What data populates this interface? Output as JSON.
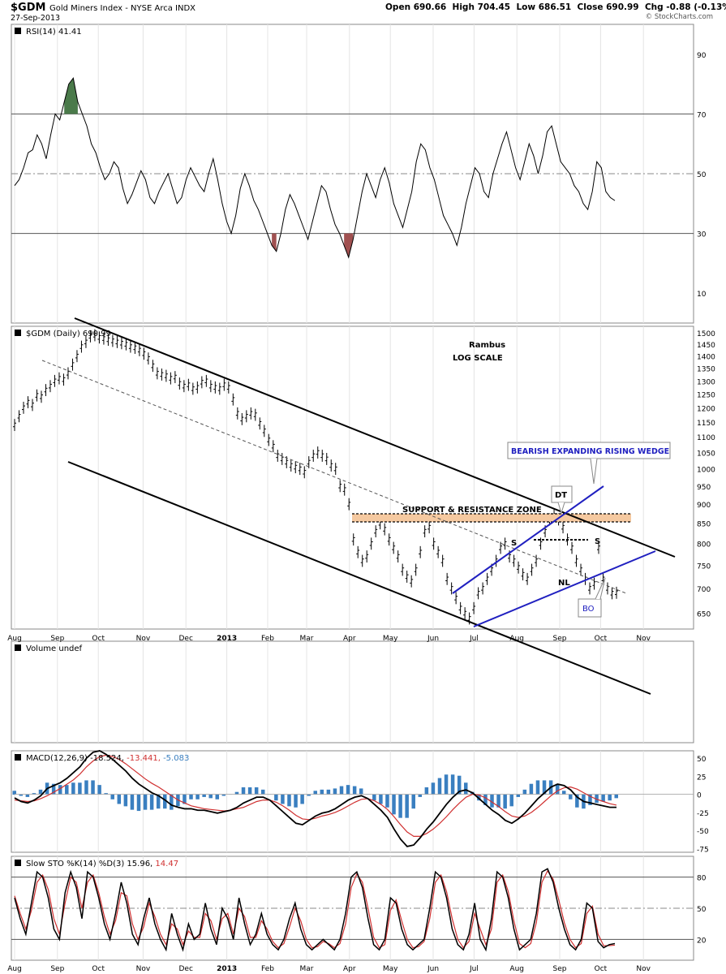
{
  "header": {
    "symbol": "$GDM",
    "description": "Gold Miners Index - NYSE Arca INDX",
    "date": "27-Sep-2013",
    "open_label": "Open",
    "open": "690.66",
    "high_label": "High",
    "high": "704.45",
    "low_label": "Low",
    "low": "686.51",
    "close_label": "Close",
    "close": "690.99",
    "chg_label": "Chg",
    "chg": "-0.88 (-0.13%)",
    "copyright": "© StockCharts.com"
  },
  "colors": {
    "price": "#000000",
    "trend": "#000000",
    "wedge": "#2020c0",
    "zone": "#f5c9a0",
    "rsi_over": "#4a7a4a",
    "rsi_under": "#a05050",
    "macd_signal": "#d03030",
    "macd_hist": "#3a7fc0",
    "sto_d": "#d03030"
  },
  "months": [
    "Aug",
    "Sep",
    "Oct",
    "Nov",
    "Dec",
    "2013",
    "Feb",
    "Mar",
    "Apr",
    "May",
    "Jun",
    "Jul",
    "Aug",
    "Sep",
    "Oct",
    "Nov"
  ],
  "chart_data": [
    {
      "type": "line",
      "panel": "rsi",
      "title": "RSI(14) 41.41",
      "yticks": [
        10,
        30,
        50,
        70,
        90
      ],
      "ylim": [
        0,
        100
      ],
      "reference_lines": [
        30,
        50,
        70
      ],
      "series": [
        {
          "values": [
            46,
            48,
            52,
            57,
            58,
            63,
            60,
            55,
            63,
            70,
            68,
            74,
            80,
            82,
            74,
            70,
            66,
            60,
            57,
            52,
            48,
            50,
            54,
            52,
            45,
            40,
            43,
            47,
            51,
            48,
            42,
            40,
            44,
            47,
            50,
            45,
            40,
            42,
            48,
            52,
            49,
            46,
            44,
            50,
            55,
            48,
            40,
            34,
            30,
            36,
            45,
            50,
            46,
            41,
            38,
            34,
            30,
            26,
            24,
            30,
            38,
            43,
            40,
            36,
            32,
            28,
            34,
            40,
            46,
            44,
            38,
            33,
            30,
            26,
            22,
            28,
            36,
            44,
            50,
            46,
            42,
            48,
            52,
            47,
            40,
            36,
            32,
            38,
            44,
            54,
            60,
            58,
            52,
            48,
            42,
            36,
            33,
            30,
            26,
            32,
            40,
            46,
            52,
            50,
            44,
            42,
            50,
            55,
            60,
            64,
            58,
            52,
            48,
            54,
            60,
            56,
            50,
            56,
            64,
            66,
            60,
            54,
            52,
            50,
            46,
            44,
            40,
            38,
            44,
            54,
            52,
            44,
            42,
            41
          ]
        }
      ]
    },
    {
      "type": "line",
      "panel": "price",
      "title": "$GDM (Daily) 690.99",
      "scale": "log",
      "yticks": [
        650,
        700,
        750,
        800,
        850,
        900,
        950,
        1000,
        1050,
        1100,
        1150,
        1200,
        1250,
        1300,
        1350,
        1400,
        1450,
        1500
      ],
      "annotations": [
        "Rambus",
        "LOG SCALE",
        "BEARISH EXPANDING RISING WEDGE",
        "SUPPORT & RESISTANCE ZONE",
        "DT",
        "S",
        "S",
        "NL",
        "BO"
      ],
      "series": [
        {
          "values": [
            1140,
            1170,
            1200,
            1220,
            1210,
            1245,
            1240,
            1265,
            1280,
            1300,
            1310,
            1305,
            1330,
            1365,
            1400,
            1440,
            1460,
            1485,
            1490,
            1480,
            1475,
            1470,
            1465,
            1460,
            1455,
            1450,
            1440,
            1435,
            1425,
            1410,
            1390,
            1360,
            1330,
            1325,
            1320,
            1310,
            1315,
            1290,
            1280,
            1285,
            1270,
            1275,
            1295,
            1300,
            1280,
            1275,
            1270,
            1285,
            1275,
            1230,
            1180,
            1160,
            1170,
            1180,
            1175,
            1145,
            1120,
            1090,
            1070,
            1040,
            1030,
            1020,
            1010,
            1005,
            1000,
            990,
            1020,
            1040,
            1050,
            1040,
            1030,
            1010,
            1000,
            950,
            940,
            900,
            810,
            780,
            760,
            770,
            800,
            830,
            850,
            835,
            810,
            790,
            770,
            740,
            725,
            715,
            740,
            780,
            830,
            840,
            800,
            780,
            760,
            720,
            700,
            680,
            660,
            650,
            640,
            660,
            690,
            700,
            720,
            740,
            760,
            790,
            800,
            770,
            760,
            745,
            730,
            720,
            740,
            760,
            800,
            830,
            860,
            870,
            860,
            840,
            810,
            790,
            760,
            740,
            720,
            700,
            710,
            790,
            720,
            700,
            690,
            691
          ]
        }
      ],
      "trend_lines": [
        "upper channel",
        "lower channel",
        "median channel line",
        "wedge upper",
        "wedge lower"
      ]
    },
    {
      "type": "bar",
      "panel": "volume",
      "title": "Volume undef",
      "series": []
    },
    {
      "type": "line",
      "panel": "macd",
      "title": "MACD(12,26,9)",
      "values_label": [
        "-18.524",
        "-13.441",
        "-5.083"
      ],
      "yticks": [
        -75,
        -50,
        -25,
        0,
        25,
        50
      ],
      "ylim": [
        -80,
        60
      ],
      "series": [
        {
          "values": [
            -5,
            -10,
            -12,
            -8,
            -2,
            8,
            12,
            16,
            22,
            30,
            38,
            50,
            58,
            60,
            55,
            48,
            40,
            32,
            22,
            14,
            8,
            2,
            -2,
            -8,
            -15,
            -18,
            -20,
            -20,
            -22,
            -22,
            -24,
            -26,
            -24,
            -22,
            -18,
            -12,
            -8,
            -4,
            -4,
            -8,
            -16,
            -24,
            -32,
            -40,
            -42,
            -36,
            -30,
            -26,
            -24,
            -20,
            -14,
            -8,
            -4,
            -2,
            -6,
            -14,
            -22,
            -32,
            -48,
            -62,
            -72,
            -70,
            -60,
            -48,
            -38,
            -26,
            -14,
            -4,
            4,
            6,
            2,
            -6,
            -14,
            -22,
            -28,
            -36,
            -40,
            -34,
            -26,
            -16,
            -6,
            2,
            10,
            14,
            12,
            6,
            -4,
            -10,
            -12,
            -14,
            -16,
            -18,
            -18
          ]
        },
        {
          "values": [
            -8,
            -9,
            -10,
            -9,
            -6,
            -2,
            3,
            8,
            14,
            20,
            28,
            38,
            46,
            52,
            54,
            52,
            48,
            42,
            35,
            28,
            21,
            15,
            10,
            4,
            -2,
            -8,
            -12,
            -16,
            -18,
            -20,
            -21,
            -22,
            -23,
            -22,
            -20,
            -18,
            -14,
            -10,
            -8,
            -8,
            -11,
            -16,
            -22,
            -29,
            -34,
            -35,
            -33,
            -30,
            -28,
            -25,
            -21,
            -16,
            -11,
            -7,
            -6,
            -9,
            -14,
            -21,
            -31,
            -42,
            -52,
            -58,
            -58,
            -54,
            -48,
            -40,
            -31,
            -21,
            -12,
            -4,
            0,
            -1,
            -5,
            -11,
            -17,
            -24,
            -30,
            -32,
            -30,
            -25,
            -18,
            -10,
            -2,
            5,
            9,
            10,
            7,
            2,
            -3,
            -7,
            -10,
            -13,
            -15
          ]
        }
      ]
    },
    {
      "type": "line",
      "panel": "stochastic",
      "title": "Slow STO %K(14) %D(3)",
      "values_label": [
        "15.96",
        "14.47"
      ],
      "yticks": [
        20,
        50,
        80
      ],
      "ylim": [
        0,
        100
      ],
      "reference_lines": [
        20,
        50,
        80
      ],
      "series": [
        {
          "values": [
            60,
            40,
            25,
            55,
            85,
            80,
            60,
            30,
            20,
            65,
            85,
            70,
            40,
            85,
            80,
            60,
            35,
            20,
            45,
            75,
            55,
            25,
            15,
            40,
            60,
            35,
            20,
            10,
            45,
            25,
            10,
            35,
            20,
            25,
            55,
            30,
            15,
            50,
            40,
            20,
            60,
            35,
            15,
            25,
            45,
            25,
            15,
            10,
            20,
            40,
            55,
            30,
            15,
            10,
            15,
            20,
            15,
            10,
            20,
            45,
            80,
            85,
            70,
            40,
            15,
            10,
            20,
            60,
            55,
            30,
            15,
            10,
            15,
            20,
            50,
            85,
            80,
            60,
            30,
            15,
            10,
            25,
            55,
            20,
            10,
            40,
            85,
            80,
            60,
            30,
            10,
            15,
            20,
            45,
            85,
            88,
            75,
            50,
            30,
            15,
            10,
            20,
            55,
            50,
            18,
            12,
            15,
            16
          ]
        },
        {
          "values": [
            62,
            45,
            30,
            48,
            75,
            82,
            68,
            40,
            25,
            55,
            80,
            75,
            50,
            75,
            82,
            65,
            42,
            25,
            38,
            65,
            62,
            35,
            20,
            32,
            55,
            42,
            25,
            15,
            35,
            30,
            15,
            28,
            22,
            22,
            45,
            38,
            20,
            40,
            45,
            25,
            50,
            42,
            22,
            22,
            38,
            30,
            18,
            12,
            16,
            32,
            50,
            38,
            20,
            12,
            13,
            18,
            16,
            12,
            16,
            35,
            70,
            83,
            75,
            50,
            22,
            12,
            15,
            48,
            58,
            38,
            20,
            12,
            13,
            18,
            40,
            75,
            82,
            66,
            40,
            20,
            12,
            18,
            45,
            30,
            15,
            30,
            75,
            82,
            66,
            38,
            16,
            12,
            16,
            36,
            75,
            86,
            78,
            58,
            36,
            20,
            12,
            16,
            45,
            52,
            25,
            14,
            14,
            14.5
          ]
        }
      ]
    }
  ]
}
